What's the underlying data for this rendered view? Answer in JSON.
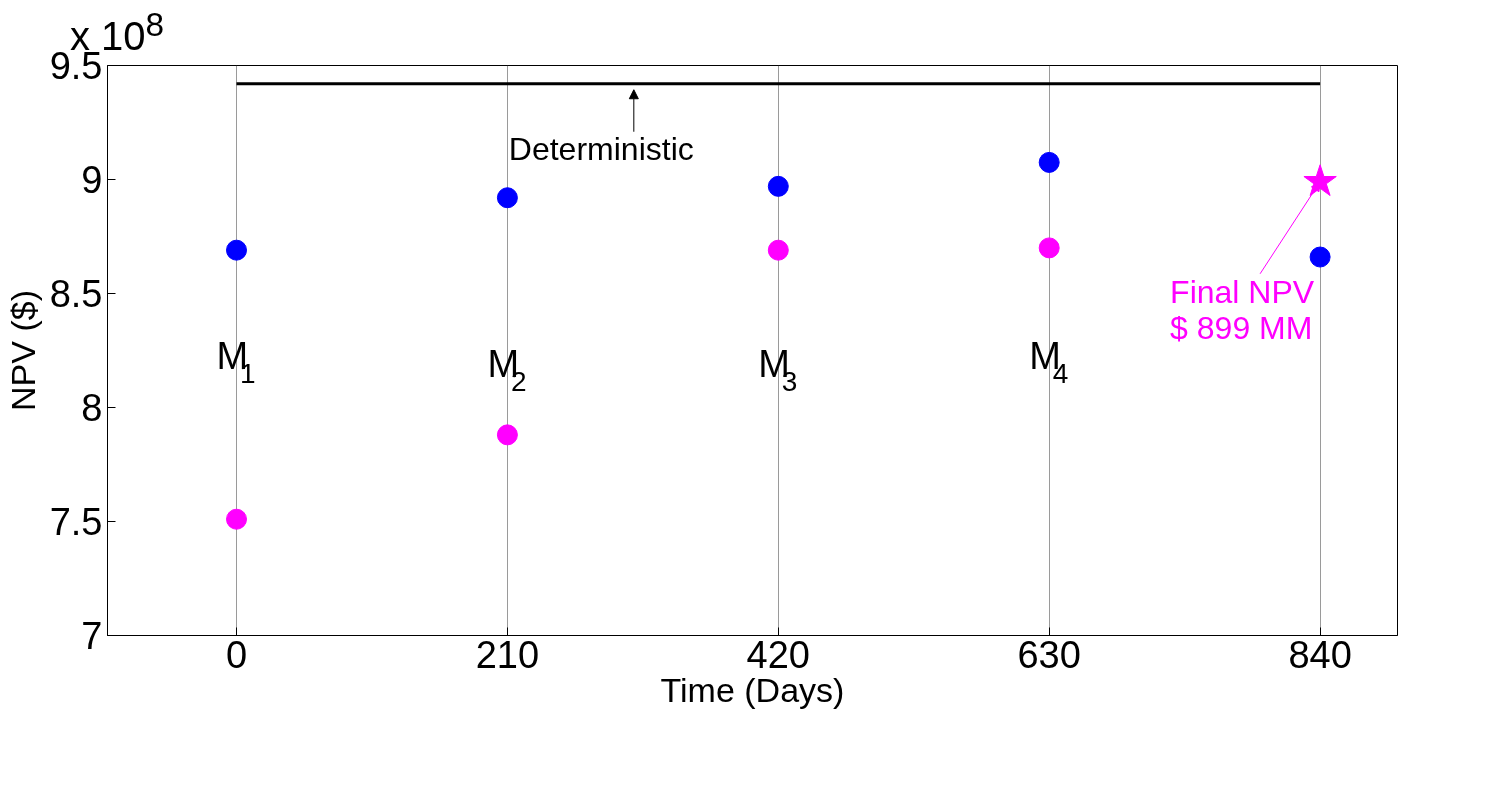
{
  "chart_data": {
    "type": "scatter",
    "xlabel": "Time (Days)",
    "ylabel": "NPV ($)",
    "x": [
      0,
      210,
      420,
      630,
      840
    ],
    "series": [
      {
        "color": "#0000ff",
        "values": [
          8.69,
          8.92,
          8.97,
          9.075,
          8.66
        ],
        "marker": "circle"
      },
      {
        "color": "#ff00ff",
        "values": [
          7.51,
          7.88,
          8.69,
          8.7,
          null
        ],
        "marker": "circle"
      },
      {
        "color": "#ff00ff",
        "values": [
          null,
          null,
          null,
          null,
          8.99
        ],
        "marker": "star"
      },
      {
        "type": "line",
        "color": "#000000",
        "values": [
          9.42,
          9.42,
          9.42,
          9.42,
          9.42
        ]
      }
    ],
    "xlim": [
      -100,
      900
    ],
    "ylim": [
      7,
      9.5
    ],
    "xticks": [
      0,
      210,
      420,
      630,
      840
    ],
    "yticks": [
      7,
      7.5,
      8,
      8.5,
      9,
      9.5
    ],
    "grid": "x",
    "annotations": [
      "x 10$^{8}$",
      "M$_{1}$",
      "M$_{2}$",
      "M$_{3}$",
      "M$_{4}$",
      {
        "text": "Deterministic",
        "x": 308,
        "y": 9.42
      },
      {
        "text": "Final NPV\n$ 899 MM",
        "x": 840,
        "y": 8.99
      }
    ]
  }
}
